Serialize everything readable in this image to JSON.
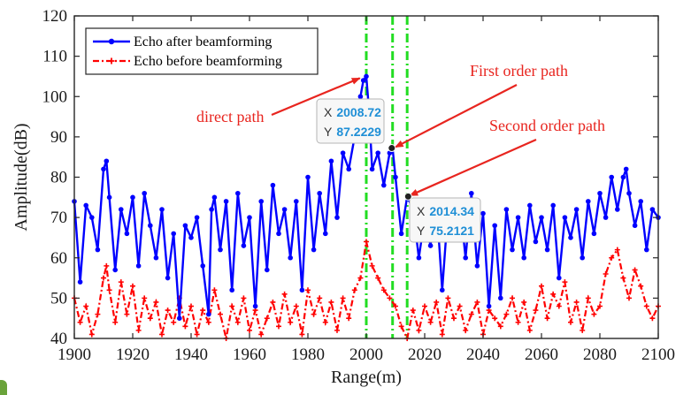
{
  "chart_data": {
    "type": "line",
    "title": "",
    "xlabel": "Range(m)",
    "ylabel": "Amplitude(dB)",
    "xlim": [
      1900,
      2100
    ],
    "ylim": [
      40,
      120
    ],
    "xticks": [
      "1900",
      "1920",
      "1940",
      "1960",
      "1980",
      "2000",
      "2020",
      "2040",
      "2060",
      "2080",
      "2100"
    ],
    "yticks": [
      "40",
      "50",
      "60",
      "70",
      "80",
      "90",
      "100",
      "110",
      "120"
    ],
    "grid": false,
    "legend_position": "top-left",
    "series": [
      {
        "name": "Echo after beamforming",
        "color": "#0000ff",
        "style": "solid-with-dots",
        "x": [
          1900,
          1902,
          1904,
          1906,
          1908,
          1910,
          1911,
          1912,
          1914,
          1916,
          1918,
          1920,
          1922,
          1924,
          1926,
          1928,
          1930,
          1932,
          1934,
          1936,
          1938,
          1940,
          1942,
          1944,
          1946,
          1947,
          1948,
          1950,
          1952,
          1954,
          1956,
          1958,
          1960,
          1962,
          1964,
          1966,
          1968,
          1970,
          1972,
          1974,
          1976,
          1978,
          1980,
          1982,
          1984,
          1986,
          1988,
          1990,
          1992,
          1994,
          1996,
          1998,
          1999,
          2000,
          2001,
          2002,
          2004,
          2006,
          2008,
          2009,
          2010,
          2012,
          2014,
          2016,
          2018,
          2020,
          2022,
          2024,
          2026,
          2028,
          2030,
          2032,
          2034,
          2036,
          2038,
          2040,
          2042,
          2044,
          2046,
          2048,
          2050,
          2052,
          2054,
          2056,
          2058,
          2060,
          2062,
          2064,
          2066,
          2068,
          2070,
          2072,
          2074,
          2076,
          2078,
          2080,
          2082,
          2084,
          2086,
          2088,
          2089,
          2090,
          2092,
          2094,
          2096,
          2098,
          2100
        ],
        "y": [
          74,
          54,
          73,
          70,
          62,
          82,
          84,
          75,
          57,
          72,
          66,
          75,
          58,
          76,
          68,
          60,
          72,
          55,
          66,
          45,
          68,
          65,
          70,
          58,
          46,
          72,
          75,
          62,
          74,
          52,
          76,
          63,
          70,
          48,
          74,
          57,
          78,
          66,
          72,
          60,
          74,
          52,
          80,
          62,
          76,
          66,
          84,
          70,
          86,
          82,
          90,
          100,
          104,
          105,
          96,
          82,
          86,
          78,
          86,
          87.2,
          80,
          66,
          75.2,
          72,
          60,
          70,
          63,
          74,
          52,
          72,
          66,
          74,
          60,
          76,
          58,
          71,
          48,
          68,
          50,
          72,
          62,
          70,
          60,
          73,
          64,
          70,
          62,
          73,
          55,
          70,
          65,
          72,
          60,
          74,
          66,
          76,
          70,
          80,
          72,
          80,
          82,
          76,
          68,
          74,
          62,
          72,
          70
        ]
      },
      {
        "name": "Echo before beamforming",
        "color": "#ff0000",
        "style": "dash-dot-with-plus",
        "x": [
          1900,
          1902,
          1904,
          1906,
          1908,
          1910,
          1911,
          1912,
          1914,
          1916,
          1918,
          1920,
          1922,
          1924,
          1926,
          1928,
          1930,
          1932,
          1934,
          1936,
          1938,
          1940,
          1942,
          1944,
          1946,
          1948,
          1950,
          1952,
          1954,
          1956,
          1958,
          1960,
          1962,
          1964,
          1966,
          1968,
          1970,
          1972,
          1974,
          1976,
          1978,
          1980,
          1982,
          1984,
          1986,
          1988,
          1990,
          1992,
          1994,
          1996,
          1998,
          2000,
          2002,
          2004,
          2006,
          2008,
          2010,
          2012,
          2014,
          2016,
          2018,
          2020,
          2022,
          2024,
          2026,
          2028,
          2030,
          2032,
          2034,
          2036,
          2038,
          2040,
          2042,
          2044,
          2046,
          2048,
          2050,
          2052,
          2054,
          2056,
          2058,
          2060,
          2062,
          2064,
          2066,
          2068,
          2070,
          2072,
          2074,
          2076,
          2078,
          2080,
          2082,
          2084,
          2086,
          2088,
          2090,
          2092,
          2094,
          2096,
          2098,
          2100
        ],
        "y": [
          50,
          44,
          48,
          41,
          46,
          55,
          58,
          52,
          44,
          54,
          46,
          53,
          42,
          50,
          45,
          49,
          41,
          47,
          44,
          50,
          43,
          48,
          41,
          47,
          44,
          52,
          46,
          40,
          48,
          44,
          50,
          42,
          47,
          41,
          45,
          49,
          43,
          51,
          44,
          48,
          41,
          52,
          46,
          50,
          44,
          49,
          42,
          50,
          45,
          52,
          55,
          64,
          58,
          55,
          52,
          50,
          48,
          43,
          40,
          47,
          42,
          48,
          44,
          49,
          41,
          50,
          45,
          48,
          42,
          46,
          49,
          41,
          47,
          45,
          43,
          46,
          50,
          44,
          49,
          42,
          47,
          53,
          45,
          51,
          48,
          54,
          44,
          49,
          42,
          50,
          46,
          48,
          56,
          60,
          62,
          55,
          50,
          57,
          53,
          48,
          45,
          48
        ]
      }
    ],
    "vertical_lines": [
      {
        "x": 2000,
        "color": "#22dd22",
        "style": "dash-dot"
      },
      {
        "x": 2009,
        "color": "#22dd22",
        "style": "dash-dot"
      },
      {
        "x": 2014,
        "color": "#22dd22",
        "style": "dash-dot"
      }
    ],
    "annotations": [
      {
        "text": "direct path",
        "target_x": 1999,
        "target_y": 105
      },
      {
        "text": "First order path",
        "target_x": 2009,
        "target_y": 87
      },
      {
        "text": "Second order path",
        "target_x": 2014,
        "target_y": 75
      }
    ],
    "datatips": [
      {
        "x_label": "X",
        "x_value": "2008.72",
        "y_label": "Y",
        "y_value": "87.2229",
        "point_x": 2008.72,
        "point_y": 87.2229
      },
      {
        "x_label": "X",
        "x_value": "2014.34",
        "y_label": "Y",
        "y_value": "75.2121",
        "point_x": 2014.34,
        "point_y": 75.2121
      }
    ]
  }
}
